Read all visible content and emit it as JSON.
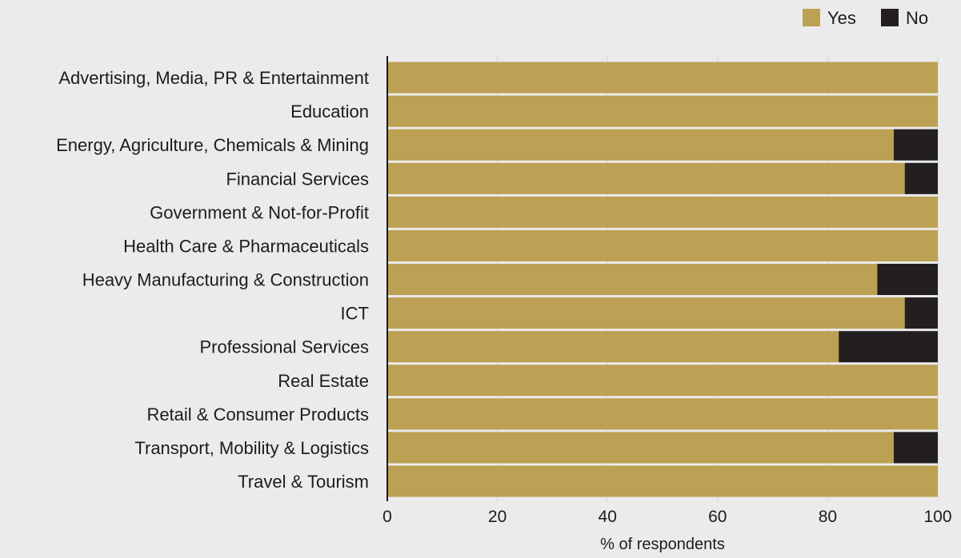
{
  "chart_data": {
    "type": "bar",
    "orientation": "horizontal",
    "stacked": true,
    "categories": [
      "Advertising, Media, PR & Entertainment",
      "Education",
      "Energy, Agriculture, Chemicals & Mining",
      "Financial Services",
      "Government & Not-for-Profit",
      "Health Care & Pharmaceuticals",
      "Heavy Manufacturing & Construction",
      "ICT",
      "Professional Services",
      "Real Estate",
      "Retail & Consumer Products",
      "Transport, Mobility & Logistics",
      "Travel & Tourism"
    ],
    "series": [
      {
        "name": "Yes",
        "color": "#bca053",
        "values": [
          100,
          100,
          92,
          94,
          100,
          100,
          89,
          94,
          82,
          100,
          100,
          92,
          100
        ]
      },
      {
        "name": "No",
        "color": "#231f20",
        "values": [
          0,
          0,
          8,
          6,
          0,
          0,
          11,
          6,
          18,
          0,
          0,
          8,
          0
        ]
      }
    ],
    "xlabel": "% of respondents",
    "ylabel": "",
    "xlim": [
      0,
      100
    ],
    "xticks": [
      0,
      20,
      40,
      60,
      80,
      100
    ],
    "grid": true,
    "legend_position": "top-right"
  }
}
